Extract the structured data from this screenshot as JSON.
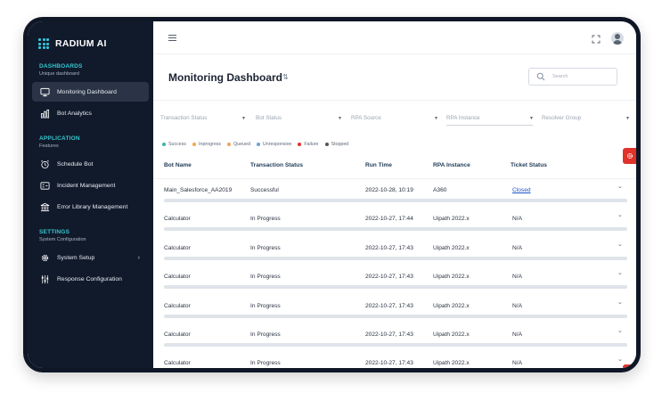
{
  "brand": {
    "name": "RADIUM AI"
  },
  "sidebar": {
    "sections": [
      {
        "title": "DASHBOARDS",
        "subtitle": "Unique dashboard",
        "items": [
          {
            "label": "Monitoring Dashboard",
            "icon": "monitor-icon",
            "active": true
          },
          {
            "label": "Bot Analytics",
            "icon": "bar-chart-icon"
          }
        ]
      },
      {
        "title": "APPLICATION",
        "subtitle": "Features",
        "items": [
          {
            "label": "Schedule Bot",
            "icon": "alarm-clock-icon"
          },
          {
            "label": "Incident Management",
            "icon": "incident-icon"
          },
          {
            "label": "Error Library Management",
            "icon": "library-icon"
          }
        ]
      },
      {
        "title": "SETTINGS",
        "subtitle": "System Configuration",
        "items": [
          {
            "label": "System Setup",
            "icon": "gear-icon",
            "has_chevron": true
          },
          {
            "label": "Response Configuration",
            "icon": "sliders-icon"
          }
        ]
      }
    ]
  },
  "header": {
    "title": "Monitoring Dashboard",
    "search_placeholder": "Search"
  },
  "filters": [
    "Transaction Status",
    "Bot Status",
    "RPA Source",
    "RPA Instance",
    "Resolver Group"
  ],
  "legend": [
    {
      "label": "Success",
      "color": "#3cb3a9"
    },
    {
      "label": "Inprogress",
      "color": "#f2a44b"
    },
    {
      "label": "Queued",
      "color": "#f0a35a"
    },
    {
      "label": "Unresponsive",
      "color": "#6f9ed6"
    },
    {
      "label": "Failure",
      "color": "#e0322b"
    },
    {
      "label": "Stopped",
      "color": "#555555"
    }
  ],
  "table": {
    "columns": [
      "Bot Name",
      "Transaction Status",
      "Run Time",
      "RPA Instance",
      "Ticket Status"
    ],
    "rows": [
      {
        "bot_name": "Main_Salesforce_AA2019",
        "status": "Successful",
        "run_time": "2022-10-28, 10:19",
        "instance": "A360",
        "ticket": "Closed"
      },
      {
        "bot_name": "Calculator",
        "status": "In Progress",
        "run_time": "2022-10-27, 17:44",
        "instance": "Uipath 2022.x",
        "ticket": "N/A"
      },
      {
        "bot_name": "Calculator",
        "status": "In Progress",
        "run_time": "2022-10-27, 17:43",
        "instance": "Uipath 2022.x",
        "ticket": "N/A"
      },
      {
        "bot_name": "Calculator",
        "status": "In Progress",
        "run_time": "2022-10-27, 17:43",
        "instance": "Uipath 2022.x",
        "ticket": "N/A"
      },
      {
        "bot_name": "Calculator",
        "status": "In Progress",
        "run_time": "2022-10-27, 17:43",
        "instance": "Uipath 2022.x",
        "ticket": "N/A"
      },
      {
        "bot_name": "Calculator",
        "status": "In Progress",
        "run_time": "2022-10-27, 17:43",
        "instance": "Uipath 2022.x",
        "ticket": "N/A"
      },
      {
        "bot_name": "Calculator",
        "status": "In Progress",
        "run_time": "2022-10-27, 17:43",
        "instance": "Uipath 2022.x",
        "ticket": "N/A"
      }
    ]
  },
  "accent_colors": {
    "brand": "#34c3d9",
    "danger": "#e0322b",
    "link": "#1d54c8",
    "sidebar_bg": "#111a2b"
  }
}
